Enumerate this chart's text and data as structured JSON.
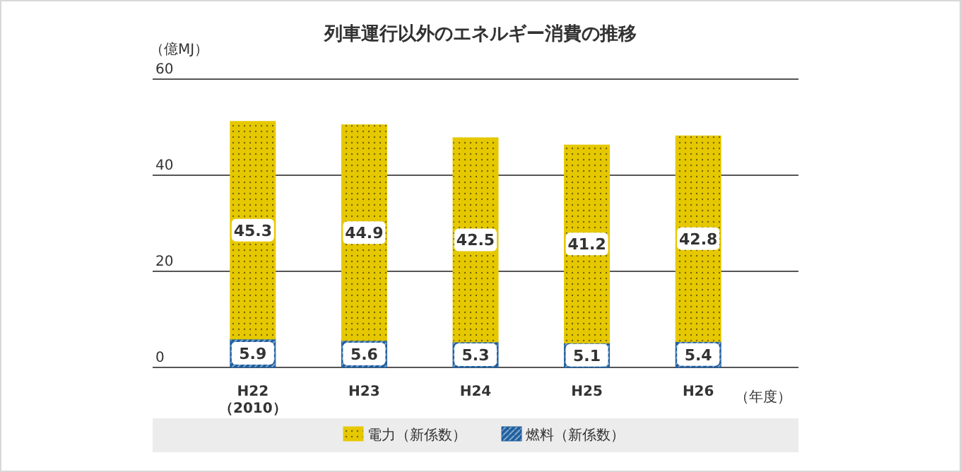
{
  "chart_data": {
    "type": "bar",
    "title": "列車運行以外のエネルギー消費の推移",
    "ylabel": "（億MJ）",
    "xlabel": "（年度）",
    "categories": [
      "H22\n（2010）",
      "H23",
      "H24",
      "H25",
      "H26"
    ],
    "stacked": true,
    "data_labels": true,
    "grid": "y",
    "legend": "bottom",
    "ylim": [
      0,
      60
    ],
    "yticks": [
      0,
      20,
      40,
      60
    ],
    "series": [
      {
        "name": "燃料（新係数）",
        "color": "#1f5f9f",
        "values": [
          5.9,
          5.6,
          5.3,
          5.1,
          5.4
        ]
      },
      {
        "name": "電力（新係数）",
        "color": "#e6c800",
        "values": [
          45.3,
          44.9,
          42.5,
          41.2,
          42.8
        ]
      }
    ]
  }
}
